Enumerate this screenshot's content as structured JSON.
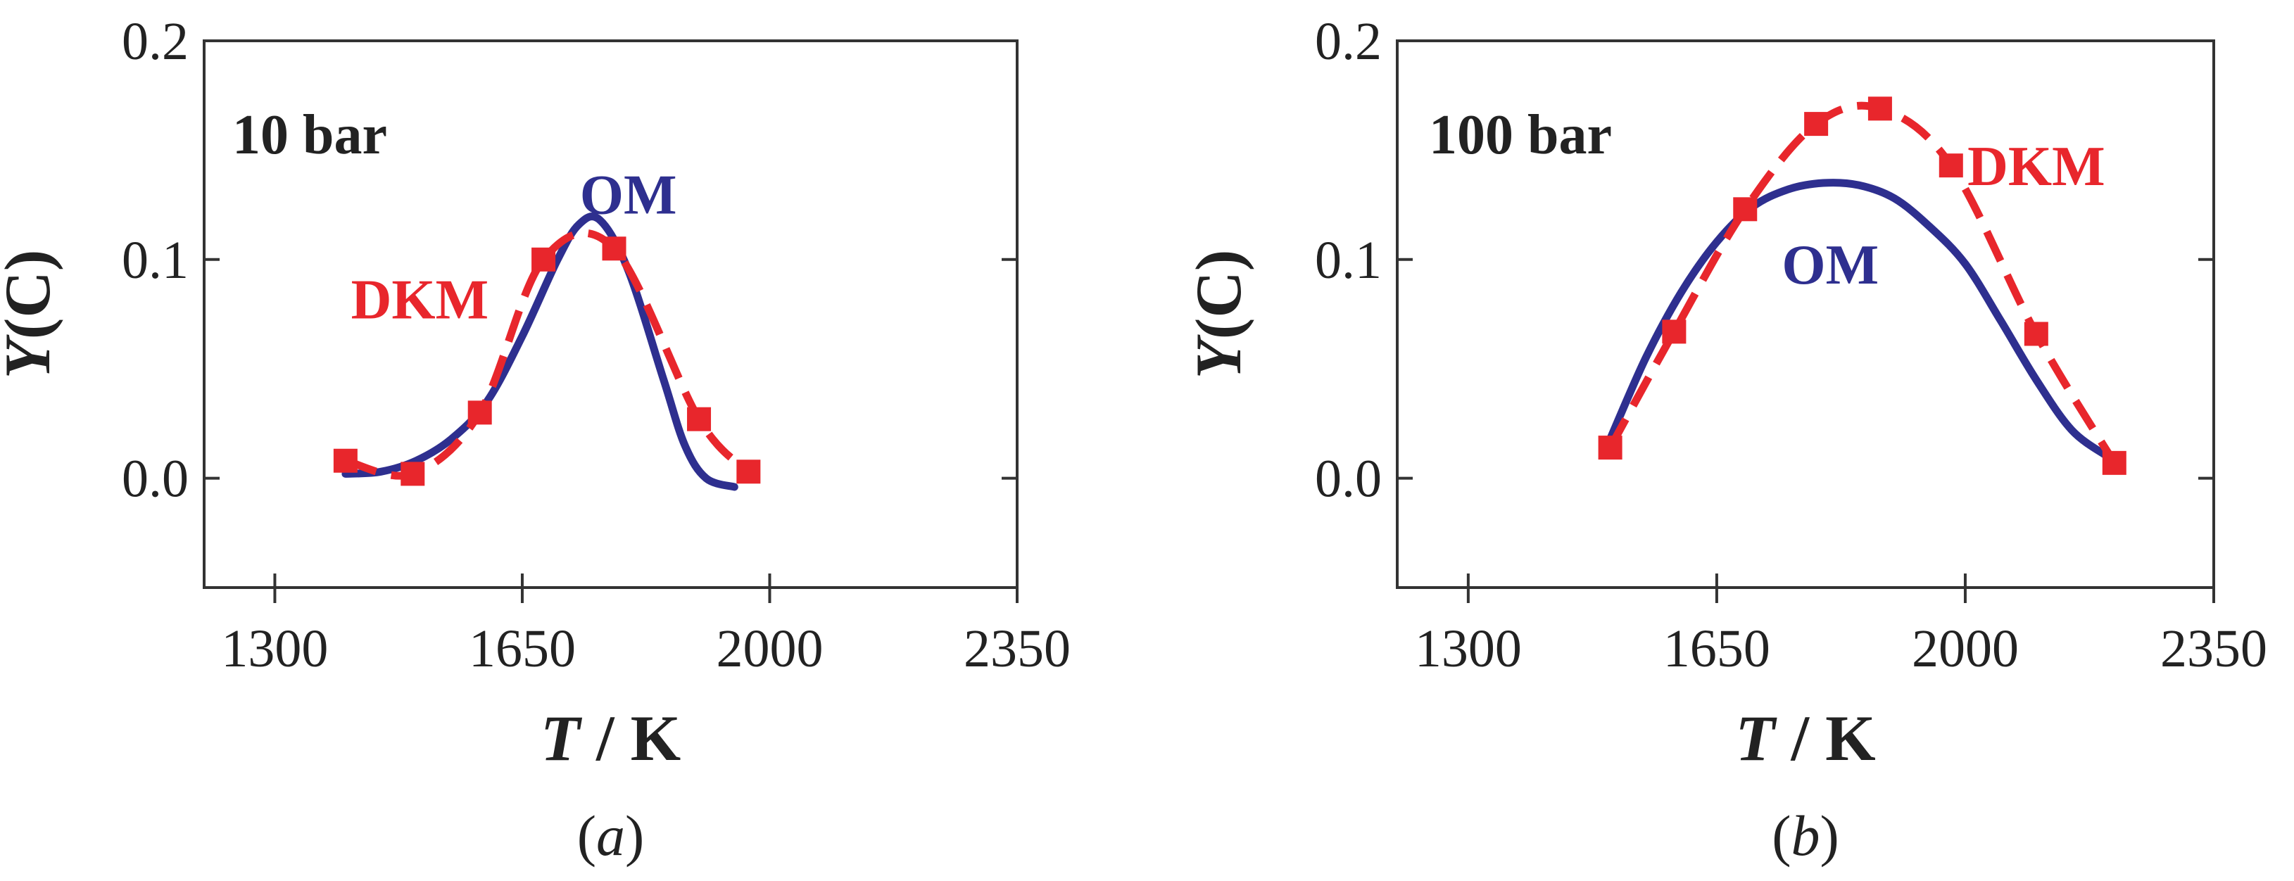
{
  "colors": {
    "OM": "#2e2f8f",
    "DKM": "#e8262c",
    "axis": "#333333"
  },
  "chart_data": [
    {
      "type": "line",
      "panel": "a",
      "caption_pre": "(",
      "caption_letter": "a",
      "caption_post": ")",
      "annotation": "10 bar",
      "xlabel_symbol": "T",
      "xlabel_rest": " / K",
      "ylabel_symbol": "Y",
      "ylabel_rest": "(C)",
      "xlim": [
        1200,
        2350
      ],
      "ylim": [
        -0.05,
        0.2
      ],
      "xticks": [
        1300,
        1650,
        2000,
        2350
      ],
      "xtick_labels": [
        "1300",
        "1650",
        "2000",
        "2350"
      ],
      "yticks": [
        0.0,
        0.1,
        0.2
      ],
      "ytick_labels": [
        "0.0",
        "0.1",
        "0.2"
      ],
      "series": [
        {
          "name": "OM",
          "style": "solid",
          "x": [
            1400,
            1450,
            1500,
            1550,
            1600,
            1650,
            1700,
            1730,
            1760,
            1800,
            1850,
            1880,
            1910,
            1950
          ],
          "y": [
            0.002,
            0.003,
            0.008,
            0.018,
            0.035,
            0.065,
            0.1,
            0.116,
            0.118,
            0.095,
            0.045,
            0.015,
            0.0,
            -0.004
          ]
        },
        {
          "name": "DKM",
          "style": "dashed-markers",
          "x": [
            1400,
            1495,
            1590,
            1680,
            1780,
            1900,
            1970
          ],
          "y": [
            0.008,
            0.002,
            0.03,
            0.1,
            0.105,
            0.027,
            0.003
          ]
        }
      ],
      "series_labels": [
        {
          "text": "OM",
          "x": 1800,
          "y": 0.13
        },
        {
          "text": "DKM",
          "x": 1505,
          "y": 0.082
        }
      ]
    },
    {
      "type": "line",
      "panel": "b",
      "caption_pre": "(",
      "caption_letter": "b",
      "caption_post": ")",
      "annotation": "100 bar",
      "xlabel_symbol": "T",
      "xlabel_rest": " / K",
      "ylabel_symbol": "Y",
      "ylabel_rest": "(C)",
      "xlim": [
        1200,
        2350
      ],
      "ylim": [
        -0.05,
        0.2
      ],
      "xticks": [
        1300,
        1650,
        2000,
        2350
      ],
      "xtick_labels": [
        "1300",
        "1650",
        "2000",
        "2350"
      ],
      "yticks": [
        0.0,
        0.1,
        0.2
      ],
      "ytick_labels": [
        "0.0",
        "0.1",
        "0.2"
      ],
      "series": [
        {
          "name": "OM",
          "style": "solid",
          "x": [
            1500,
            1550,
            1600,
            1650,
            1700,
            1750,
            1800,
            1850,
            1900,
            1950,
            2000,
            2050,
            2100,
            2150,
            2200
          ],
          "y": [
            0.018,
            0.055,
            0.085,
            0.108,
            0.124,
            0.132,
            0.135,
            0.134,
            0.128,
            0.115,
            0.098,
            0.072,
            0.045,
            0.022,
            0.01
          ]
        },
        {
          "name": "DKM",
          "style": "dashed-markers",
          "x": [
            1500,
            1590,
            1690,
            1790,
            1880,
            1980,
            2100,
            2210
          ],
          "y": [
            0.014,
            0.067,
            0.123,
            0.162,
            0.169,
            0.143,
            0.066,
            0.007
          ]
        }
      ],
      "series_labels": [
        {
          "text": "OM",
          "x": 1810,
          "y": 0.098
        },
        {
          "text": "DKM",
          "x": 2100,
          "y": 0.143
        }
      ]
    }
  ]
}
